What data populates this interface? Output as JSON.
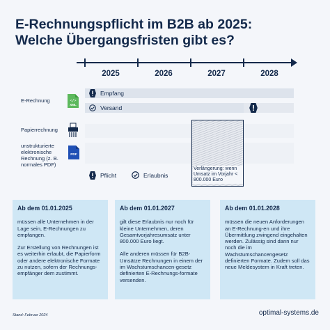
{
  "title_line1": "E-Rechnungspflicht im B2B ab 2025:",
  "title_line2": "Welche Übergangsfristen gibt es?",
  "years": [
    "2025",
    "2026",
    "2027",
    "2028"
  ],
  "rows": {
    "erechnung": {
      "label": "E-Rechnung",
      "icon_text": "XML",
      "bar1": "Empfang",
      "bar2": "Versand"
    },
    "papier": {
      "label": "Papierrechnung"
    },
    "unstrukturiert": {
      "label_lines": [
        "unstrukturierte",
        "elektronische",
        "Rechnung (z. B.",
        "normales PDF)"
      ],
      "icon_text": "PDF"
    }
  },
  "hatch_note": "Verlängerung: wenn Umsatz im Vorjahr < 800.000 Euro",
  "legend": {
    "pflicht": "Pflicht",
    "erlaubnis": "Erlaubnis"
  },
  "boxes": [
    {
      "heading": "Ab dem 01.01.2025",
      "paragraphs": [
        "müssen alle Unternehmen in der Lage sein, E-Rechnungen zu empfangen.",
        "Zur Erstellung von Rechnungen ist es weiterhin erlaubt, die Papierform oder andere elektronische Formate zu nutzen, sofern der Rechnungs-empfänger dem zustimmt."
      ]
    },
    {
      "heading": "Ab dem 01.01.2027",
      "paragraphs": [
        "gilt diese Erlaubnis nur noch für kleine Unternehmen, deren Gesamtvorjahresumsatz unter 800.000 Euro liegt.",
        "Alle anderen müssen für B2B-Umsätze Rechnungen in einem der im Wachstumschancen-gesetz definierten E-Rechnungs-formate versenden."
      ]
    },
    {
      "heading": "Ab dem 01.01.2028",
      "paragraphs": [
        "müssen die neuen Anforderungen an E-Rechnung-en und ihre Übermittlung zwingend eingehalten werden. Zulässig sind dann nur noch die im Wachstumschancengesetz definierten Formate. Zudem soll das neue Meldesystem in Kraft treten."
      ]
    }
  ],
  "footer_left": "Stand: Februar 2024",
  "footer_right": "optimal-systems.de",
  "colors": {
    "navy": "#13294b",
    "box": "#cfe7f5",
    "green": "#5cb85c",
    "pdf_blue": "#1f4fb5"
  }
}
